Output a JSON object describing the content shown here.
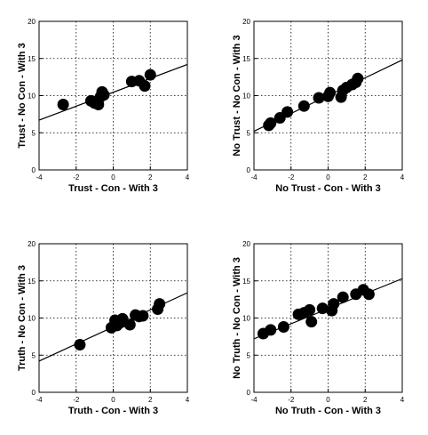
{
  "chart_data": [
    {
      "type": "scatter",
      "xlabel": "Trust - Con - With 3",
      "ylabel": "Trust - No Con - With 3",
      "xlim": [
        -4,
        4
      ],
      "ylim": [
        0,
        20
      ],
      "xticks": [
        "-4",
        "-2",
        "0",
        "2",
        "4"
      ],
      "yticks": [
        "0",
        "5",
        "10",
        "15",
        "20"
      ],
      "grid": true,
      "grid_style": "dotted",
      "marker_color": "#000000",
      "points": [
        {
          "x": -2.7,
          "y": 8.8
        },
        {
          "x": -1.2,
          "y": 9.3
        },
        {
          "x": -1.0,
          "y": 9.0
        },
        {
          "x": -0.8,
          "y": 8.8
        },
        {
          "x": -0.7,
          "y": 9.8
        },
        {
          "x": -0.6,
          "y": 10.5
        },
        {
          "x": -0.5,
          "y": 10.1
        },
        {
          "x": 1.0,
          "y": 11.9
        },
        {
          "x": 1.4,
          "y": 12.0
        },
        {
          "x": 1.7,
          "y": 11.3
        },
        {
          "x": 2.0,
          "y": 12.8
        }
      ],
      "fit_line": {
        "x": [
          -4,
          4
        ],
        "y": [
          6.7,
          14.2
        ]
      }
    },
    {
      "type": "scatter",
      "xlabel": "No Trust - Con - With 3",
      "ylabel": "No Trust - No Con - With 3",
      "xlim": [
        -4,
        4
      ],
      "ylim": [
        0,
        20
      ],
      "xticks": [
        "-4",
        "-2",
        "0",
        "2",
        "4"
      ],
      "yticks": [
        "0",
        "5",
        "10",
        "15",
        "20"
      ],
      "grid": true,
      "grid_style": "dotted",
      "marker_color": "#000000",
      "points": [
        {
          "x": -3.2,
          "y": 6.0
        },
        {
          "x": -3.1,
          "y": 6.3
        },
        {
          "x": -2.6,
          "y": 7.0
        },
        {
          "x": -2.2,
          "y": 7.8
        },
        {
          "x": -1.3,
          "y": 8.6
        },
        {
          "x": -0.5,
          "y": 9.7
        },
        {
          "x": 0.0,
          "y": 9.9
        },
        {
          "x": 0.1,
          "y": 10.4
        },
        {
          "x": 0.7,
          "y": 9.8
        },
        {
          "x": 0.8,
          "y": 10.7
        },
        {
          "x": 1.0,
          "y": 11.1
        },
        {
          "x": 1.3,
          "y": 11.5
        },
        {
          "x": 1.5,
          "y": 11.8
        },
        {
          "x": 1.6,
          "y": 12.3
        }
      ],
      "fit_line": {
        "x": [
          -4,
          4
        ],
        "y": [
          5.2,
          14.8
        ]
      }
    },
    {
      "type": "scatter",
      "xlabel": "Truth - Con - With 3",
      "ylabel": "Truth - No Con - With 3",
      "xlim": [
        -4,
        4
      ],
      "ylim": [
        0,
        20
      ],
      "xticks": [
        "-4",
        "-2",
        "0",
        "2",
        "4"
      ],
      "yticks": [
        "0",
        "5",
        "10",
        "15",
        "20"
      ],
      "grid": true,
      "grid_style": "dotted",
      "marker_color": "#000000",
      "points": [
        {
          "x": -1.8,
          "y": 6.4
        },
        {
          "x": -0.1,
          "y": 8.7
        },
        {
          "x": 0.1,
          "y": 9.7
        },
        {
          "x": 0.2,
          "y": 9.0
        },
        {
          "x": 0.4,
          "y": 9.4
        },
        {
          "x": 0.5,
          "y": 9.9
        },
        {
          "x": 0.9,
          "y": 9.1
        },
        {
          "x": 1.2,
          "y": 10.4
        },
        {
          "x": 1.4,
          "y": 10.2
        },
        {
          "x": 1.6,
          "y": 10.3
        },
        {
          "x": 2.4,
          "y": 11.2
        },
        {
          "x": 2.5,
          "y": 11.9
        }
      ],
      "fit_line": {
        "x": [
          -4,
          4
        ],
        "y": [
          4.2,
          13.4
        ]
      }
    },
    {
      "type": "scatter",
      "xlabel": "No Truth - Con - With 3",
      "ylabel": "No Truth - No Con - With 3",
      "xlim": [
        -4,
        4
      ],
      "ylim": [
        0,
        20
      ],
      "xticks": [
        "-4",
        "-2",
        "0",
        "2",
        "4"
      ],
      "yticks": [
        "0",
        "5",
        "10",
        "15",
        "20"
      ],
      "grid": true,
      "grid_style": "dotted",
      "marker_color": "#000000",
      "points": [
        {
          "x": -3.5,
          "y": 7.9
        },
        {
          "x": -3.1,
          "y": 8.4
        },
        {
          "x": -2.4,
          "y": 8.8
        },
        {
          "x": -1.6,
          "y": 10.5
        },
        {
          "x": -1.3,
          "y": 10.7
        },
        {
          "x": -1.0,
          "y": 11.1
        },
        {
          "x": -0.9,
          "y": 9.5
        },
        {
          "x": -0.3,
          "y": 11.3
        },
        {
          "x": 0.2,
          "y": 11.0
        },
        {
          "x": 0.3,
          "y": 11.9
        },
        {
          "x": 0.8,
          "y": 12.8
        },
        {
          "x": 1.5,
          "y": 13.2
        },
        {
          "x": 1.9,
          "y": 13.8
        },
        {
          "x": 2.2,
          "y": 13.2
        }
      ],
      "fit_line": {
        "x": [
          -4,
          4
        ],
        "y": [
          7.2,
          15.3
        ]
      }
    }
  ]
}
